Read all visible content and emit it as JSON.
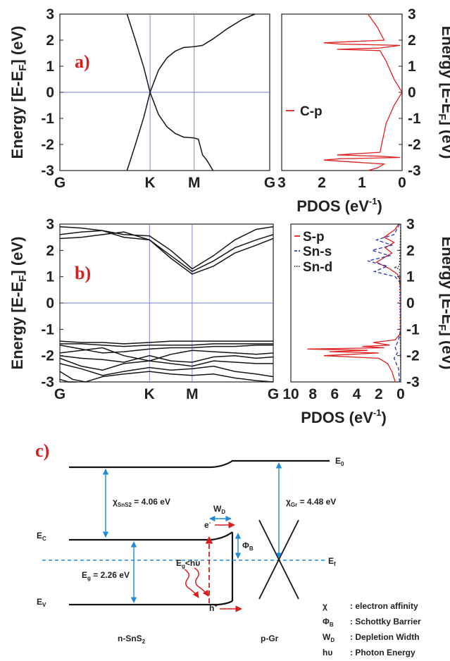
{
  "chart_data": [
    {
      "panel": "a)",
      "type": "line",
      "subtype": "band-structure",
      "ylabel": "Energy [E-E",
      "ylabel_sub": "F",
      "ylabel_tail": "] (eV)",
      "ylim": [
        -3,
        3
      ],
      "yticks": [
        "-3",
        "-2",
        "-1",
        "0",
        "1",
        "2",
        "3"
      ],
      "kpoints": [
        "G",
        "K",
        "M",
        "G"
      ],
      "kpos": [
        0,
        0.43,
        0.64,
        1.0
      ],
      "fermi_level": 0,
      "bands": [
        {
          "x": [
            0.32,
            0.36,
            0.4,
            0.43,
            0.47,
            0.51,
            0.55,
            0.59,
            0.64
          ],
          "y": [
            -3.0,
            -2.0,
            -0.95,
            0.0,
            0.85,
            1.32,
            1.58,
            1.72,
            1.75
          ]
        },
        {
          "x": [
            0.64,
            0.68,
            0.73,
            0.8,
            0.87,
            0.93
          ],
          "y": [
            1.75,
            1.8,
            2.05,
            2.45,
            2.8,
            3.0
          ]
        },
        {
          "x": [
            0.43,
            0.47,
            0.51,
            0.55,
            0.59,
            0.64
          ],
          "y": [
            0.0,
            -0.85,
            -1.32,
            -1.58,
            -1.72,
            -1.75
          ]
        },
        {
          "x": [
            0.64,
            0.66,
            0.68,
            0.7,
            0.73
          ],
          "y": [
            -1.75,
            -1.8,
            -2.4,
            -2.6,
            -3.0
          ]
        },
        {
          "x": [
            0.32,
            0.36,
            0.4,
            0.43
          ],
          "y": [
            3.0,
            2.0,
            0.95,
            0.0
          ]
        }
      ]
    },
    {
      "panel": "a)",
      "type": "line",
      "subtype": "pdos",
      "xlabel": "PDOS (eV",
      "xlabel_sup": "-1",
      "xlabel_tail": ")",
      "xlim": [
        3.0,
        0
      ],
      "xticks": [
        "3",
        "2",
        "1",
        "0"
      ],
      "ylabel": "Energy [E-E",
      "ylabel_sub": "F",
      "ylabel_tail": "] (eV)",
      "ylim": [
        -3,
        3
      ],
      "yticks": [
        "-3",
        "-2",
        "-1",
        "0",
        "1",
        "2",
        "3"
      ],
      "legend": [
        {
          "name": "C-p",
          "color": "#e02020"
        }
      ],
      "series": [
        {
          "name": "C-p",
          "color": "#e02020",
          "x": [
            0.85,
            0.62,
            0.45,
            1.95,
            1.55,
            0.05,
            0.55,
            1.62,
            0.55,
            0.4,
            0.2,
            0.0,
            0.2,
            0.4,
            0.55,
            1.62,
            0.55,
            0.05,
            1.55,
            1.95,
            0.45,
            0.62,
            0.85
          ],
          "y": [
            3.0,
            2.5,
            2.0,
            1.9,
            1.85,
            1.8,
            1.7,
            1.65,
            1.6,
            1.2,
            0.5,
            0.0,
            -0.5,
            -1.2,
            -2.3,
            -2.4,
            -2.45,
            -2.5,
            -2.55,
            -2.6,
            -2.75,
            -2.9,
            -3.0
          ]
        }
      ]
    },
    {
      "panel": "b)",
      "type": "line",
      "subtype": "band-structure",
      "ylabel": "Energy [E-E",
      "ylabel_sub": "F",
      "ylabel_tail": "] (eV)",
      "ylim": [
        -3,
        3
      ],
      "yticks": [
        "-3",
        "-2",
        "-1",
        "0",
        "1",
        "2",
        "3"
      ],
      "kpoints": [
        "G",
        "K",
        "M",
        "G"
      ],
      "kpos": [
        0,
        0.42,
        0.62,
        1.0
      ],
      "fermi_level": 0,
      "bands": [
        {
          "x": [
            0,
            0.1,
            0.2,
            0.3,
            0.42,
            0.52,
            0.62,
            0.72,
            0.82,
            0.92,
            1.0
          ],
          "y": [
            2.9,
            2.85,
            2.75,
            2.6,
            2.55,
            2.0,
            1.3,
            1.8,
            2.4,
            2.8,
            2.9
          ]
        },
        {
          "x": [
            0,
            0.1,
            0.2,
            0.3,
            0.42,
            0.52,
            0.62,
            0.72,
            0.82,
            0.92,
            1.0
          ],
          "y": [
            2.6,
            2.7,
            2.75,
            2.5,
            2.4,
            1.8,
            1.2,
            1.6,
            2.1,
            2.4,
            2.6
          ]
        },
        {
          "x": [
            0,
            0.1,
            0.2,
            0.3,
            0.42,
            0.52,
            0.62,
            0.72,
            0.82,
            0.92,
            1.0
          ],
          "y": [
            2.45,
            2.5,
            2.6,
            2.7,
            2.4,
            1.7,
            1.1,
            1.4,
            1.9,
            2.2,
            2.45
          ]
        },
        {
          "x": [
            0,
            0.1,
            0.2,
            0.3,
            0.42,
            0.52,
            0.62,
            0.72,
            0.82,
            0.92,
            1.0
          ],
          "y": [
            -1.45,
            -1.5,
            -1.5,
            -1.55,
            -1.5,
            -1.45,
            -1.45,
            -1.45,
            -1.45,
            -1.45,
            -1.45
          ]
        },
        {
          "x": [
            0,
            0.1,
            0.2,
            0.3,
            0.42,
            0.52,
            0.62,
            0.72,
            0.82,
            0.92,
            1.0
          ],
          "y": [
            -1.55,
            -1.55,
            -1.6,
            -1.65,
            -1.6,
            -1.6,
            -1.6,
            -1.55,
            -1.55,
            -1.55,
            -1.55
          ]
        },
        {
          "x": [
            0,
            0.1,
            0.2,
            0.3,
            0.42,
            0.52,
            0.62,
            0.72,
            0.82,
            0.92,
            1.0
          ],
          "y": [
            -1.6,
            -1.75,
            -1.9,
            -1.85,
            -1.75,
            -1.7,
            -1.7,
            -1.65,
            -1.65,
            -1.6,
            -1.6
          ]
        },
        {
          "x": [
            0,
            0.1,
            0.2,
            0.3,
            0.42,
            0.52,
            0.62,
            0.72,
            0.82,
            0.92,
            1.0
          ],
          "y": [
            -1.9,
            -1.8,
            -1.7,
            -2.0,
            -2.2,
            -1.95,
            -1.8,
            -1.85,
            -1.9,
            -1.95,
            -1.9
          ]
        },
        {
          "x": [
            0,
            0.1,
            0.2,
            0.3,
            0.42,
            0.52,
            0.62,
            0.72,
            0.82,
            0.92,
            1.0
          ],
          "y": [
            -2.0,
            -2.1,
            -2.15,
            -2.25,
            -2.0,
            -2.2,
            -2.25,
            -2.05,
            -2.0,
            -2.1,
            -2.05
          ]
        },
        {
          "x": [
            0,
            0.1,
            0.2,
            0.3,
            0.42,
            0.52,
            0.62,
            0.72,
            0.82,
            0.92,
            1.0
          ],
          "y": [
            -2.1,
            -2.4,
            -2.55,
            -2.3,
            -2.2,
            -2.3,
            -2.4,
            -2.2,
            -2.25,
            -2.3,
            -2.3
          ]
        },
        {
          "x": [
            0,
            0.1,
            0.2,
            0.3,
            0.42,
            0.52,
            0.62,
            0.72,
            0.82,
            0.92,
            1.0
          ],
          "y": [
            -2.3,
            -2.5,
            -2.75,
            -2.6,
            -2.45,
            -2.55,
            -2.5,
            -2.4,
            -2.6,
            -2.7,
            -2.8
          ]
        },
        {
          "x": [
            0,
            0.06,
            0.12,
            0.2,
            0.3,
            0.42,
            0.52,
            0.62,
            0.72,
            0.82,
            0.92,
            1.0
          ],
          "y": [
            -2.6,
            -2.9,
            -3.0,
            -2.8,
            -2.7,
            -2.6,
            -2.7,
            -2.75,
            -2.7,
            -2.85,
            -2.95,
            -3.0
          ]
        },
        {
          "x": [
            0,
            0.04,
            0.08
          ],
          "y": [
            -2.9,
            -3.0,
            -3.0
          ]
        }
      ]
    },
    {
      "panel": "b)",
      "type": "line",
      "subtype": "pdos",
      "xlabel": "PDOS (eV",
      "xlabel_sup": "-1",
      "xlabel_tail": ")",
      "xlim": [
        10,
        0
      ],
      "xticks": [
        "10",
        "8",
        "6",
        "4",
        "2",
        "0"
      ],
      "ylabel": "Energy [E-E",
      "ylabel_sub": "F",
      "ylabel_tail": "] (eV)",
      "ylim": [
        -3,
        3
      ],
      "yticks": [
        "-3",
        "-2",
        "-1",
        "0",
        "1",
        "2",
        "3"
      ],
      "legend": [
        {
          "name": "S-p",
          "color": "#e02020",
          "dash": "solid"
        },
        {
          "name": "Sn-s",
          "color": "#2a3ab8",
          "dash": "dashed"
        },
        {
          "name": "Sn-d",
          "color": "#333333",
          "dash": "dotted"
        }
      ],
      "series": [
        {
          "name": "S-p",
          "color": "#e02020",
          "dash": "",
          "x": [
            0.2,
            0.5,
            1.5,
            0.6,
            1.4,
            0.8,
            2.2,
            1.0,
            0.3,
            0.1,
            0.0,
            0.0,
            0.1,
            0.5,
            2.5,
            1.0,
            3.5,
            1.5,
            8.5,
            3.0,
            6.5,
            2.0,
            7.0,
            2.0,
            1.2,
            0.8,
            0.5
          ],
          "y": [
            3.0,
            2.8,
            2.5,
            2.3,
            2.1,
            1.9,
            1.55,
            1.3,
            1.1,
            0.9,
            0.5,
            -1.0,
            -1.2,
            -1.4,
            -1.5,
            -1.6,
            -1.65,
            -1.7,
            -1.75,
            -1.8,
            -1.85,
            -1.9,
            -2.0,
            -2.1,
            -2.3,
            -2.6,
            -3.0
          ]
        },
        {
          "name": "Sn-s",
          "color": "#2a3ab8",
          "dash": "5,3",
          "x": [
            0.1,
            0.6,
            2.2,
            0.8,
            2.6,
            1.0,
            3.0,
            1.2,
            2.4,
            0.5,
            0.1,
            0.0,
            0.0,
            0.2,
            0.5,
            0.3,
            0.6,
            0.2,
            0.1
          ],
          "y": [
            3.0,
            2.6,
            2.4,
            2.2,
            2.0,
            1.8,
            1.6,
            1.4,
            1.2,
            1.0,
            0.8,
            0.5,
            -1.0,
            -1.4,
            -1.7,
            -1.9,
            -2.1,
            -2.5,
            -3.0
          ]
        },
        {
          "name": "Sn-d",
          "color": "#333333",
          "dash": "2,2",
          "x": [
            0.0,
            0.1,
            0.6,
            0.1,
            0.0
          ],
          "y": [
            3.0,
            1.4,
            1.35,
            1.3,
            -3.0
          ]
        }
      ]
    }
  ],
  "diagram": {
    "panel_label": "c)",
    "e0": "E",
    "e0_sub": "0",
    "ec": "E",
    "ec_sub": "C",
    "ev": "E",
    "ev_sub": "V",
    "ef": "E",
    "ef_sub": "f",
    "chi_sns2": "χ",
    "chi_sns2_sub": "SnS2",
    "chi_sns2_val": " = 4.06 eV",
    "chi_gr": "χ",
    "chi_gr_sub": "Gr",
    "chi_gr_val": " = 4.48 eV",
    "eg": "E",
    "eg_sub": "g",
    "eg_val": " = 2.26 eV",
    "wd": "W",
    "wd_sub": "D",
    "phib": "Φ",
    "phib_sub": "B",
    "egh": "E",
    "egh_sub": "g",
    "egh_tail": "<hυ",
    "electron": "e",
    "electron_sup": "-",
    "hole": "h",
    "hole_sup": "+",
    "n_sns2": "n-SnS",
    "n_sns2_sub": "2",
    "p_gr": "p-Gr",
    "legend": [
      {
        "sym": "χ",
        "sub": "",
        "desc": ": electron affinity"
      },
      {
        "sym": "Φ",
        "sub": "B",
        "desc": ": Schottky Barrier"
      },
      {
        "sym": "W",
        "sub": "D",
        "desc": ": Depletion Width"
      },
      {
        "sym": "hυ",
        "sub": "",
        "desc": ": Photon Energy"
      }
    ]
  }
}
